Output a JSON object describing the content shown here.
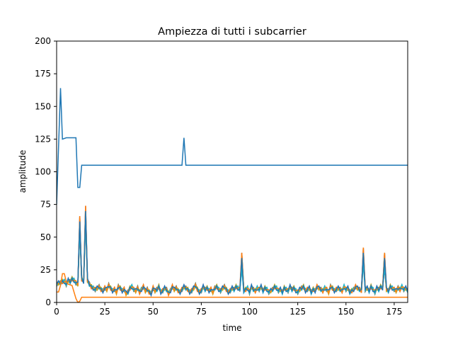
{
  "chart_data": {
    "type": "line",
    "title": "Ampiezza di tutti i subcarrier",
    "xlabel": "time",
    "ylabel": "amplitude",
    "xlim": [
      0,
      182
    ],
    "ylim": [
      0,
      200
    ],
    "xticks": [
      0,
      25,
      50,
      75,
      100,
      125,
      150,
      175
    ],
    "yticks": [
      0,
      25,
      50,
      75,
      100,
      125,
      150,
      175,
      200
    ],
    "grid": false,
    "colors": [
      "#1f77b4",
      "#ff7f0e",
      "#2ca02c",
      "#d62728",
      "#9467bd",
      "#8c564b",
      "#e377c2",
      "#7f7f7f",
      "#bcbd22",
      "#17becf"
    ],
    "series": [
      {
        "color": "#1f77b4",
        "points": [
          [
            0,
            75
          ],
          [
            2,
            164
          ],
          [
            3,
            125
          ],
          [
            5,
            126
          ],
          [
            10,
            126
          ],
          [
            11,
            88
          ],
          [
            12,
            88
          ],
          [
            13,
            105
          ],
          [
            65,
            105
          ],
          [
            66,
            126
          ],
          [
            67,
            105
          ],
          [
            182,
            105
          ]
        ]
      },
      {
        "color": "#ff7f0e",
        "points": [
          [
            0,
            8
          ],
          [
            1,
            8
          ],
          [
            2,
            13
          ],
          [
            3,
            22
          ],
          [
            4,
            22
          ],
          [
            5,
            16
          ],
          [
            6,
            14
          ],
          [
            8,
            13
          ],
          [
            10,
            3
          ],
          [
            11,
            0
          ],
          [
            12,
            1
          ],
          [
            13,
            4
          ],
          [
            182,
            4
          ]
        ]
      }
    ],
    "noise_base": [
      14,
      15,
      15,
      16,
      16,
      14,
      17,
      16,
      18,
      17,
      15,
      14,
      66,
      18,
      16,
      74,
      17,
      14,
      12,
      11,
      10,
      11,
      12,
      10,
      9,
      11,
      10,
      13,
      11,
      9,
      10,
      8,
      12,
      11,
      9,
      10,
      7,
      8,
      11,
      12,
      10,
      9,
      11,
      8,
      10,
      12,
      9,
      10,
      8,
      7,
      11,
      9,
      10,
      12,
      8,
      9,
      11,
      10,
      7,
      9,
      12,
      10,
      11,
      9,
      8,
      10,
      12,
      11,
      10,
      8,
      9,
      11,
      13,
      10,
      8,
      9,
      12,
      10,
      11,
      9,
      10,
      8,
      11,
      12,
      10,
      9,
      11,
      12,
      10,
      8,
      9,
      11,
      10,
      12,
      11,
      10,
      38,
      9,
      10,
      11,
      8,
      12,
      10,
      9,
      11,
      10,
      12,
      9,
      11,
      10,
      8,
      9,
      10,
      12,
      11,
      9,
      10,
      8,
      11,
      10,
      9,
      12,
      10,
      11,
      9,
      8,
      10,
      11,
      12,
      9,
      10,
      11,
      8,
      10,
      9,
      12,
      11,
      10,
      9,
      11,
      10,
      8,
      12,
      11,
      9,
      10,
      11,
      10,
      9,
      12,
      10,
      11,
      8,
      9,
      10,
      12,
      11,
      10,
      9,
      42,
      10,
      11,
      9,
      12,
      10,
      8,
      11,
      10,
      12,
      11,
      38,
      10,
      9,
      12,
      11,
      10,
      9,
      11,
      10,
      12,
      10,
      11,
      9
    ]
  }
}
